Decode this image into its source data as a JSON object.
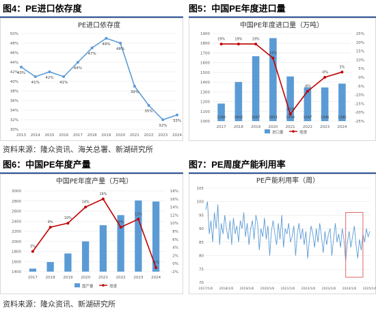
{
  "figures": [
    {
      "label": "图4：PE进口依存度"
    },
    {
      "label": "图5：中国PE年度进口量"
    },
    {
      "label": "图6：中国PE年度产量"
    },
    {
      "label": "图7：PE周度产能利用率"
    }
  ],
  "sources": {
    "top": "资料来源：隆众资讯、海关总署、新湖研究所",
    "bottom": "资料来源：隆众资讯、新湖研究所"
  },
  "colors": {
    "bar": "#5b9bd5",
    "line_blue": "#5b9bd5",
    "line_red": "#c00000",
    "highlight_box": "#e06666",
    "grid": "#e6e6e6",
    "rule": "#2f5597"
  },
  "chart_data": [
    {
      "type": "line",
      "title": "PE进口依存度",
      "x": [
        "2013",
        "2014",
        "2015",
        "2016",
        "2017",
        "2018",
        "2019",
        "2020",
        "2021",
        "2022",
        "2023",
        "2024"
      ],
      "values": [
        43,
        41,
        42,
        41,
        44,
        47,
        49,
        48,
        39,
        35,
        32,
        33
      ],
      "labels": [
        "43%",
        "41%",
        "42%",
        "41%",
        "44%",
        "47%",
        "49%",
        "48%",
        "39%",
        "35%",
        "32%",
        "33%"
      ],
      "yticks": [
        "30%",
        "32%",
        "34%",
        "36%",
        "38%",
        "40%",
        "42%",
        "44%",
        "46%",
        "48%",
        "50%"
      ],
      "ylim": [
        30,
        50
      ]
    },
    {
      "type": "bar+line",
      "title": "中国PE年度进口量（万吨）",
      "categories": [
        "2017",
        "2018",
        "2019",
        "2020",
        "2021",
        "2022",
        "2023",
        "2024"
      ],
      "bars": {
        "name": "进口量",
        "values": [
          1180,
          1402,
          1667,
          1853,
          1459,
          1347,
          1346,
          1385
        ]
      },
      "line": {
        "name": "增速",
        "values": [
          19,
          19,
          19,
          11,
          -21,
          -8,
          0,
          3
        ],
        "labels": [
          "19%",
          "19%",
          "19%",
          "11%",
          "-21%",
          "-8%",
          "-0%",
          "3%"
        ]
      },
      "yticks_left": [
        "1000",
        "1100",
        "1200",
        "1300",
        "1400",
        "1500",
        "1600",
        "1700",
        "1800",
        "1900"
      ],
      "yticks_right": [
        "25%",
        "20%",
        "15%",
        "10%",
        "5%",
        "0%",
        "-5%",
        "-10%",
        "-15%",
        "-20%",
        "-25%"
      ],
      "ylim_left": [
        1000,
        1900
      ],
      "ylim_right": [
        -25,
        25
      ]
    },
    {
      "type": "bar+line",
      "title": "中国PE年度产量（万吨）",
      "categories": [
        "2017",
        "2018",
        "2019",
        "2020",
        "2021",
        "2022",
        "2023",
        "2024"
      ],
      "bars": {
        "name": "国产量",
        "values": [
          1460,
          1590,
          1760,
          2000,
          2320,
          2520,
          2810,
          2790
        ]
      },
      "line": {
        "name": "增速",
        "values": [
          3,
          9,
          10,
          14,
          16,
          9,
          11,
          -1
        ],
        "labels": [
          "3%",
          "9%",
          "10%",
          "14%",
          "16%",
          "9%",
          "11%",
          "-1%"
        ]
      },
      "yticks_left": [
        "1400",
        "1600",
        "1800",
        "2000",
        "2200",
        "2400",
        "2600",
        "2800",
        "3000"
      ],
      "yticks_right": [
        "18%",
        "16%",
        "14%",
        "12%",
        "10%",
        "8%",
        "6%",
        "4%",
        "2%",
        "0%",
        "-2%"
      ],
      "ylim_left": [
        1400,
        3000
      ],
      "ylim_right": [
        -2,
        18
      ]
    },
    {
      "type": "line",
      "title": "PE产能利用率（周）",
      "x_ticks": [
        "2017/1/6",
        "2018/1/6",
        "2019/1/6",
        "2020/1/6",
        "2021/1/6",
        "2022/1/6",
        "2023/1/6",
        "2024/1/6",
        "2025/1/6"
      ],
      "yticks": [
        "70",
        "75",
        "80",
        "85",
        "90",
        "95",
        "100",
        "105"
      ],
      "ylim": [
        70,
        105
      ],
      "series_approx": [
        97,
        100,
        88,
        93,
        85,
        96,
        90,
        99,
        84,
        92,
        88,
        95,
        90,
        86,
        93,
        84,
        94,
        88,
        91,
        85,
        93,
        90,
        96,
        87,
        92,
        84,
        90,
        93,
        86,
        95,
        92,
        82,
        90,
        87,
        94,
        86,
        91,
        80,
        89,
        93,
        88,
        84,
        92,
        86,
        95,
        83,
        90,
        88,
        92,
        85,
        87,
        91,
        80,
        88,
        92,
        86,
        90,
        84,
        89,
        79,
        86,
        91,
        88,
        83,
        90,
        85,
        92,
        87,
        81,
        89,
        84,
        88,
        90,
        80,
        86,
        92,
        85,
        88,
        83,
        90,
        86,
        78,
        85,
        89,
        83,
        87,
        91,
        84,
        79,
        86,
        82,
        88,
        85,
        90,
        87,
        89
      ],
      "highlight": {
        "from_index": 81,
        "to_index": 91
      }
    }
  ]
}
